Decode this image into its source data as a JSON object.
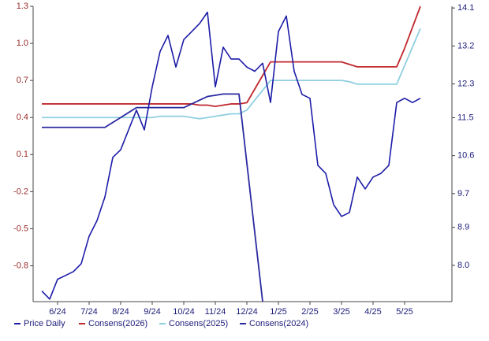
{
  "chart_data": {
    "type": "line",
    "categories": [
      null,
      null,
      "6/24",
      null,
      null,
      null,
      "7/24",
      null,
      null,
      null,
      "8/24",
      null,
      null,
      null,
      "9/24",
      null,
      null,
      null,
      "10/24",
      null,
      null,
      null,
      "11/24",
      null,
      null,
      null,
      "12/24",
      null,
      null,
      null,
      "1/25",
      null,
      null,
      null,
      "2/25",
      null,
      null,
      null,
      "3/25",
      null,
      null,
      null,
      "4/25",
      null,
      null,
      null,
      "5/25",
      null,
      null
    ],
    "series": [
      {
        "name": "Price Daily",
        "color": "#1c1ca8",
        "axis": "y2",
        "values": [
          7.39,
          7.2,
          7.67,
          7.76,
          7.85,
          8.04,
          8.69,
          9.06,
          9.62,
          10.56,
          10.74,
          11.21,
          11.68,
          11.21,
          12.23,
          13.07,
          13.45,
          12.7,
          13.35,
          13.54,
          13.73,
          14.0,
          12.23,
          13.17,
          12.89,
          12.89,
          12.7,
          12.6,
          12.79,
          11.86,
          13.54,
          13.91,
          12.6,
          12.05,
          11.96,
          10.37,
          10.18,
          9.44,
          9.16,
          9.25,
          10.09,
          9.81,
          10.09,
          10.18,
          10.37,
          11.86,
          11.96,
          11.86,
          11.96
        ]
      },
      {
        "name": "Consens(2026)",
        "color": "#c0272d",
        "values": [
          0.51,
          0.51,
          0.51,
          0.51,
          0.51,
          0.51,
          0.51,
          0.51,
          0.51,
          0.51,
          0.51,
          0.51,
          0.51,
          0.51,
          0.51,
          0.51,
          0.51,
          0.51,
          0.51,
          0.51,
          0.5,
          0.5,
          0.49,
          0.5,
          0.51,
          0.51,
          0.52,
          0.63,
          0.74,
          0.85,
          0.85,
          0.85,
          0.85,
          0.85,
          0.85,
          0.85,
          0.85,
          0.85,
          0.85,
          0.83,
          0.81,
          0.81,
          0.81,
          0.81,
          0.81,
          0.81,
          0.96,
          1.13,
          1.3
        ]
      },
      {
        "name": "Consens(2025)",
        "color": "#8ecfe0",
        "values": [
          0.4,
          0.4,
          0.4,
          0.4,
          0.4,
          0.4,
          0.4,
          0.4,
          0.4,
          0.4,
          0.4,
          0.4,
          0.4,
          0.4,
          0.4,
          0.41,
          0.41,
          0.41,
          0.41,
          0.4,
          0.39,
          0.4,
          0.41,
          0.42,
          0.43,
          0.43,
          0.46,
          0.54,
          0.62,
          0.7,
          0.7,
          0.7,
          0.7,
          0.7,
          0.7,
          0.7,
          0.7,
          0.7,
          0.7,
          0.69,
          0.67,
          0.67,
          0.67,
          0.67,
          0.67,
          0.67,
          0.82,
          0.97,
          1.12
        ]
      },
      {
        "name": "Consens(2024)",
        "color": "#2a2aa0",
        "values": [
          0.32,
          0.32,
          0.32,
          0.32,
          0.32,
          0.32,
          0.32,
          0.32,
          0.32,
          0.36,
          0.4,
          0.44,
          0.48,
          0.48,
          0.48,
          0.48,
          0.48,
          0.48,
          0.48,
          0.51,
          0.54,
          0.57,
          0.58,
          0.59,
          0.59,
          0.59,
          0.03,
          -0.53,
          -1.09,
          null,
          null,
          null,
          null,
          null,
          null,
          null,
          null,
          null,
          null,
          null,
          null,
          null,
          null,
          null,
          null,
          null,
          null,
          null,
          null
        ]
      }
    ],
    "ylim": [
      -1.09,
      1.3
    ],
    "yticks": [
      1.3,
      {
        "value": 1,
        "label": "1.0"
      },
      0.7,
      0.4,
      0.1,
      -0.2,
      -0.5,
      -0.8
    ],
    "y2lim": [
      7.14,
      14.14
    ],
    "y2ticks": [
      14.1,
      13.2,
      12.3,
      11.5,
      10.6,
      9.7,
      8.9,
      {
        "value": 8,
        "label": "8.0"
      }
    ],
    "grid": false
  }
}
